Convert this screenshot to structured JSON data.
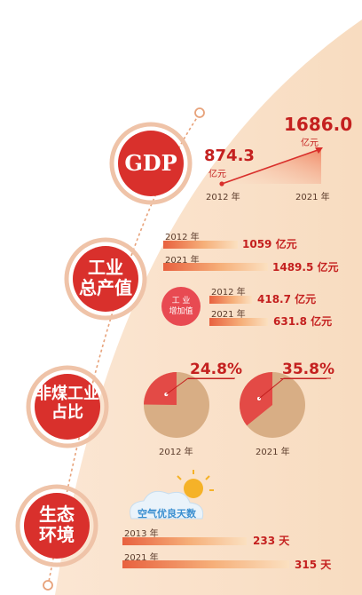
{
  "colors": {
    "accent": "#c4201f",
    "circle": "#d9302c",
    "panel": "#fbe3cd",
    "pie_base": "#d8ae85",
    "pie_slice": "#e34a46"
  },
  "gdp": {
    "label": "GDP",
    "start_value": "874.3",
    "start_unit": "亿元",
    "end_value": "1686.0",
    "end_unit": "亿元",
    "start_year": "2012 年",
    "end_year": "2021 年"
  },
  "industry": {
    "label_line1": "工业",
    "label_line2": "总产值",
    "rows": [
      {
        "year": "2012 年",
        "value": "1059 亿元",
        "amount": 1059
      },
      {
        "year": "2021 年",
        "value": "1489.5 亿元",
        "amount": 1489.5
      }
    ],
    "added_badge_line1": "工  业",
    "added_badge_line2": "增加值",
    "added_rows": [
      {
        "year": "2012 年",
        "value": "418.7 亿元",
        "amount": 418.7
      },
      {
        "year": "2021 年",
        "value": "631.8 亿元",
        "amount": 631.8
      }
    ]
  },
  "non_coal": {
    "label_line1": "非煤工业",
    "label_line2": "占比",
    "pies": [
      {
        "year": "2012 年",
        "percent_label": "24.8%",
        "fraction": 0.248
      },
      {
        "year": "2021 年",
        "percent_label": "35.8%",
        "fraction": 0.358
      }
    ]
  },
  "eco": {
    "label_line1": "生态",
    "label_line2": "环境",
    "weather_label": "空气优良天数",
    "rows": [
      {
        "year": "2013 年",
        "value": "233 天",
        "amount": 233
      },
      {
        "year": "2021 年",
        "value": "315 天",
        "amount": 315
      }
    ]
  }
}
